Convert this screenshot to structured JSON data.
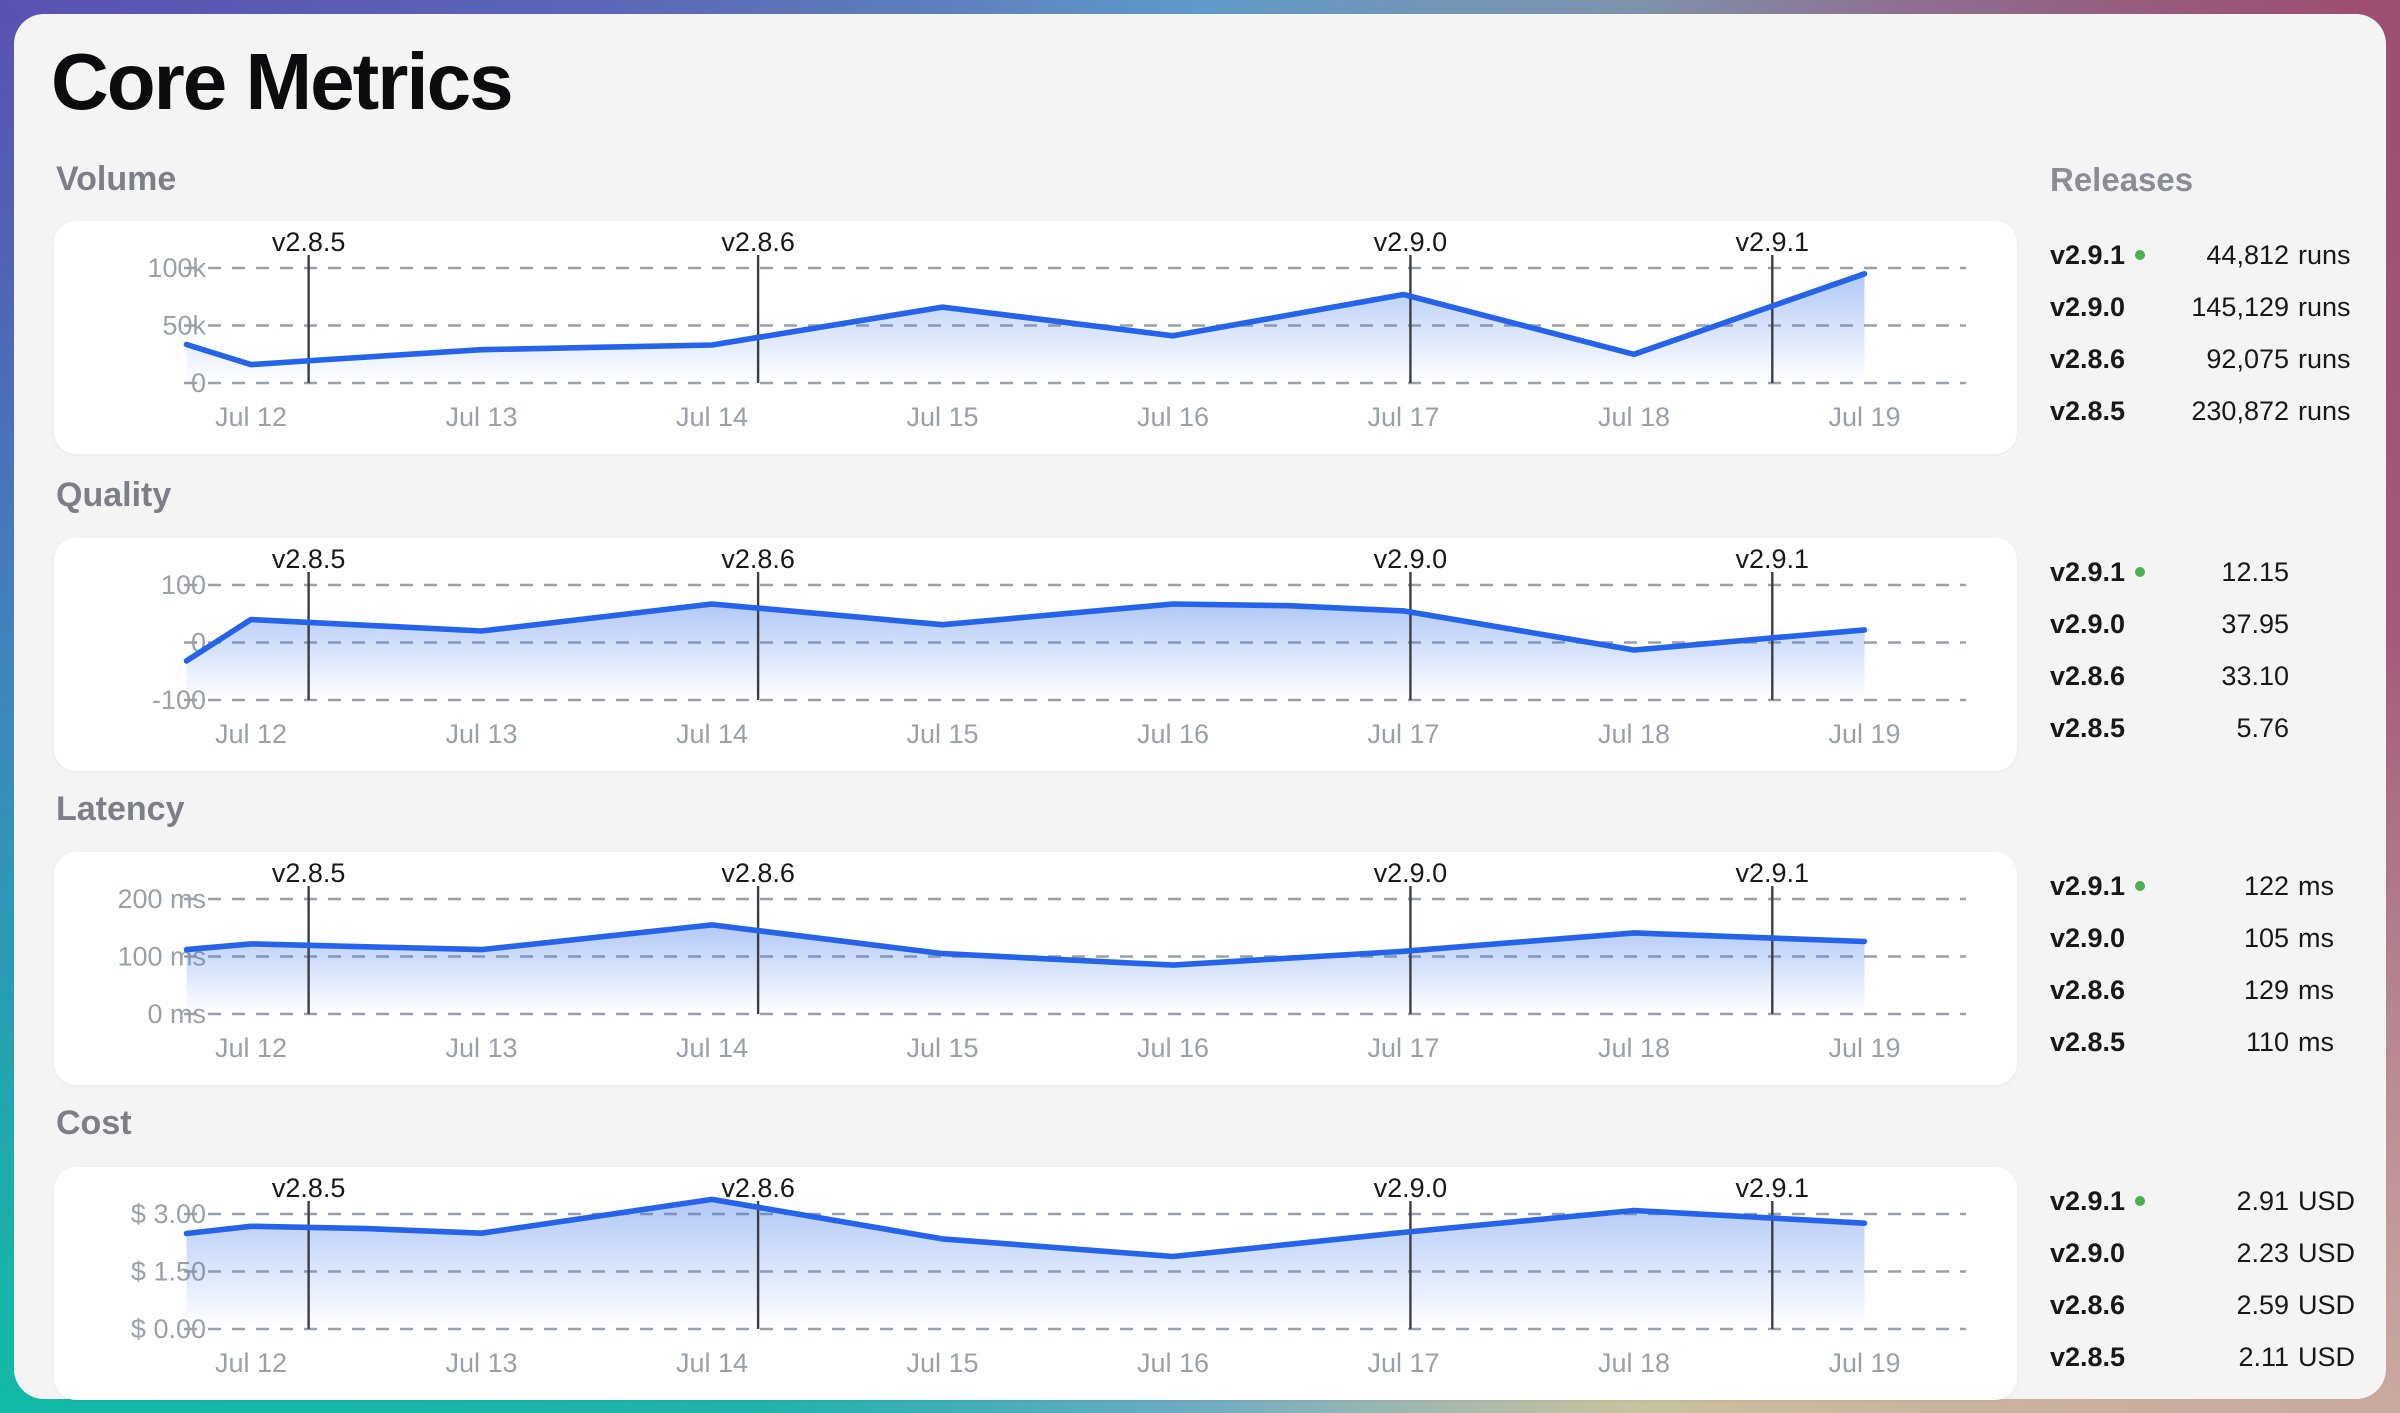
{
  "page": {
    "title": "Core Metrics",
    "releases_header": "Releases"
  },
  "colors": {
    "line": "#2563eb",
    "fill_top": "rgba(59,116,235,0.40)",
    "fill_bottom": "rgba(59,116,235,0)",
    "grid": "#9aa0ab",
    "axis_text": "#9aa0a8",
    "marker_line": "#3c3e44",
    "marker_text": "#17181c",
    "current_dot": "#4cb052",
    "panel_bg": "#f4f4f5",
    "card_bg": "#ffffff"
  },
  "chart_data": [
    {
      "type": "area",
      "title": "Volume",
      "categories": [
        "Jul 12",
        "Jul 13",
        "Jul 14",
        "Jul 15",
        "Jul 16",
        "Jul 17",
        "Jul 18",
        "Jul 19"
      ],
      "ylim": [
        0,
        100
      ],
      "y_ticks": [
        {
          "label": "100k",
          "value": 100
        },
        {
          "label": "50k",
          "value": 50
        },
        {
          "label": "0",
          "value": 0
        }
      ],
      "points": [
        [
          -0.28,
          33.5
        ],
        [
          0,
          16
        ],
        [
          0.3,
          20
        ],
        [
          1,
          29
        ],
        [
          1.5,
          31
        ],
        [
          2,
          33
        ],
        [
          3,
          66
        ],
        [
          4,
          41
        ],
        [
          5,
          77
        ],
        [
          6,
          25
        ],
        [
          7,
          95
        ]
      ],
      "markers": [
        {
          "label": "v2.8.5",
          "day": 0.25
        },
        {
          "label": "v2.8.6",
          "day": 2.2
        },
        {
          "label": "v2.9.0",
          "day": 5.03
        },
        {
          "label": "v2.9.1",
          "day": 6.6
        }
      ],
      "releases": [
        {
          "version": "v2.9.1",
          "current": true,
          "number": "44,812",
          "unit": "runs"
        },
        {
          "version": "v2.9.0",
          "current": false,
          "number": "145,129",
          "unit": "runs"
        },
        {
          "version": "v2.8.6",
          "current": false,
          "number": "92,075",
          "unit": "runs"
        },
        {
          "version": "v2.8.5",
          "current": false,
          "number": "230,872",
          "unit": "runs"
        }
      ]
    },
    {
      "type": "area",
      "title": "Quality",
      "categories": [
        "Jul 12",
        "Jul 13",
        "Jul 14",
        "Jul 15",
        "Jul 16",
        "Jul 17",
        "Jul 18",
        "Jul 19"
      ],
      "ylim": [
        -100,
        100
      ],
      "y_ticks": [
        {
          "label": "100",
          "value": 100
        },
        {
          "label": "0",
          "value": 0
        },
        {
          "label": "-100",
          "value": -100
        }
      ],
      "points": [
        [
          -0.28,
          -32
        ],
        [
          0,
          40
        ],
        [
          1,
          20
        ],
        [
          2,
          67
        ],
        [
          3,
          31
        ],
        [
          4,
          67
        ],
        [
          4.5,
          64
        ],
        [
          5,
          55
        ],
        [
          6,
          -13
        ],
        [
          7,
          22
        ]
      ],
      "markers": [
        {
          "label": "v2.8.5",
          "day": 0.25
        },
        {
          "label": "v2.8.6",
          "day": 2.2
        },
        {
          "label": "v2.9.0",
          "day": 5.03
        },
        {
          "label": "v2.9.1",
          "day": 6.6
        }
      ],
      "releases": [
        {
          "version": "v2.9.1",
          "current": true,
          "number": "12.15",
          "unit": ""
        },
        {
          "version": "v2.9.0",
          "current": false,
          "number": "37.95",
          "unit": ""
        },
        {
          "version": "v2.8.6",
          "current": false,
          "number": "33.10",
          "unit": ""
        },
        {
          "version": "v2.8.5",
          "current": false,
          "number": "5.76",
          "unit": ""
        }
      ]
    },
    {
      "type": "area",
      "title": "Latency",
      "categories": [
        "Jul 12",
        "Jul 13",
        "Jul 14",
        "Jul 15",
        "Jul 16",
        "Jul 17",
        "Jul 18",
        "Jul 19"
      ],
      "ylim": [
        0,
        200
      ],
      "y_ticks": [
        {
          "label": "200 ms",
          "value": 200
        },
        {
          "label": "100 ms",
          "value": 100
        },
        {
          "label": "0 ms",
          "value": 0
        }
      ],
      "points": [
        [
          -0.28,
          112
        ],
        [
          0,
          122
        ],
        [
          1,
          112
        ],
        [
          2,
          155
        ],
        [
          3,
          105
        ],
        [
          4,
          85
        ],
        [
          5,
          109
        ],
        [
          6,
          141
        ],
        [
          7,
          126
        ]
      ],
      "markers": [
        {
          "label": "v2.8.5",
          "day": 0.25
        },
        {
          "label": "v2.8.6",
          "day": 2.2
        },
        {
          "label": "v2.9.0",
          "day": 5.03
        },
        {
          "label": "v2.9.1",
          "day": 6.6
        }
      ],
      "releases": [
        {
          "version": "v2.9.1",
          "current": true,
          "number": "122",
          "unit": "ms"
        },
        {
          "version": "v2.9.0",
          "current": false,
          "number": "105",
          "unit": "ms"
        },
        {
          "version": "v2.8.6",
          "current": false,
          "number": "129",
          "unit": "ms"
        },
        {
          "version": "v2.8.5",
          "current": false,
          "number": "110",
          "unit": "ms"
        }
      ]
    },
    {
      "type": "area",
      "title": "Cost",
      "categories": [
        "Jul 12",
        "Jul 13",
        "Jul 14",
        "Jul 15",
        "Jul 16",
        "Jul 17",
        "Jul 18",
        "Jul 19"
      ],
      "ylim": [
        0,
        3
      ],
      "y_ticks": [
        {
          "label": "$ 3.00",
          "value": 3
        },
        {
          "label": "$ 1.50",
          "value": 1.5
        },
        {
          "label": "$ 0.00",
          "value": 0
        }
      ],
      "points": [
        [
          -0.28,
          2.49
        ],
        [
          0,
          2.68
        ],
        [
          0.5,
          2.62
        ],
        [
          1,
          2.5
        ],
        [
          2,
          3.38
        ],
        [
          3,
          2.35
        ],
        [
          4,
          1.89
        ],
        [
          5,
          2.52
        ],
        [
          6,
          3.09
        ],
        [
          7,
          2.76
        ]
      ],
      "markers": [
        {
          "label": "v2.8.5",
          "day": 0.25
        },
        {
          "label": "v2.8.6",
          "day": 2.2
        },
        {
          "label": "v2.9.0",
          "day": 5.03
        },
        {
          "label": "v2.9.1",
          "day": 6.6
        }
      ],
      "releases": [
        {
          "version": "v2.9.1",
          "current": true,
          "number": "2.91",
          "unit": "USD"
        },
        {
          "version": "v2.9.0",
          "current": false,
          "number": "2.23",
          "unit": "USD"
        },
        {
          "version": "v2.8.6",
          "current": false,
          "number": "2.59",
          "unit": "USD"
        },
        {
          "version": "v2.8.5",
          "current": false,
          "number": "2.11",
          "unit": "USD"
        }
      ]
    }
  ]
}
